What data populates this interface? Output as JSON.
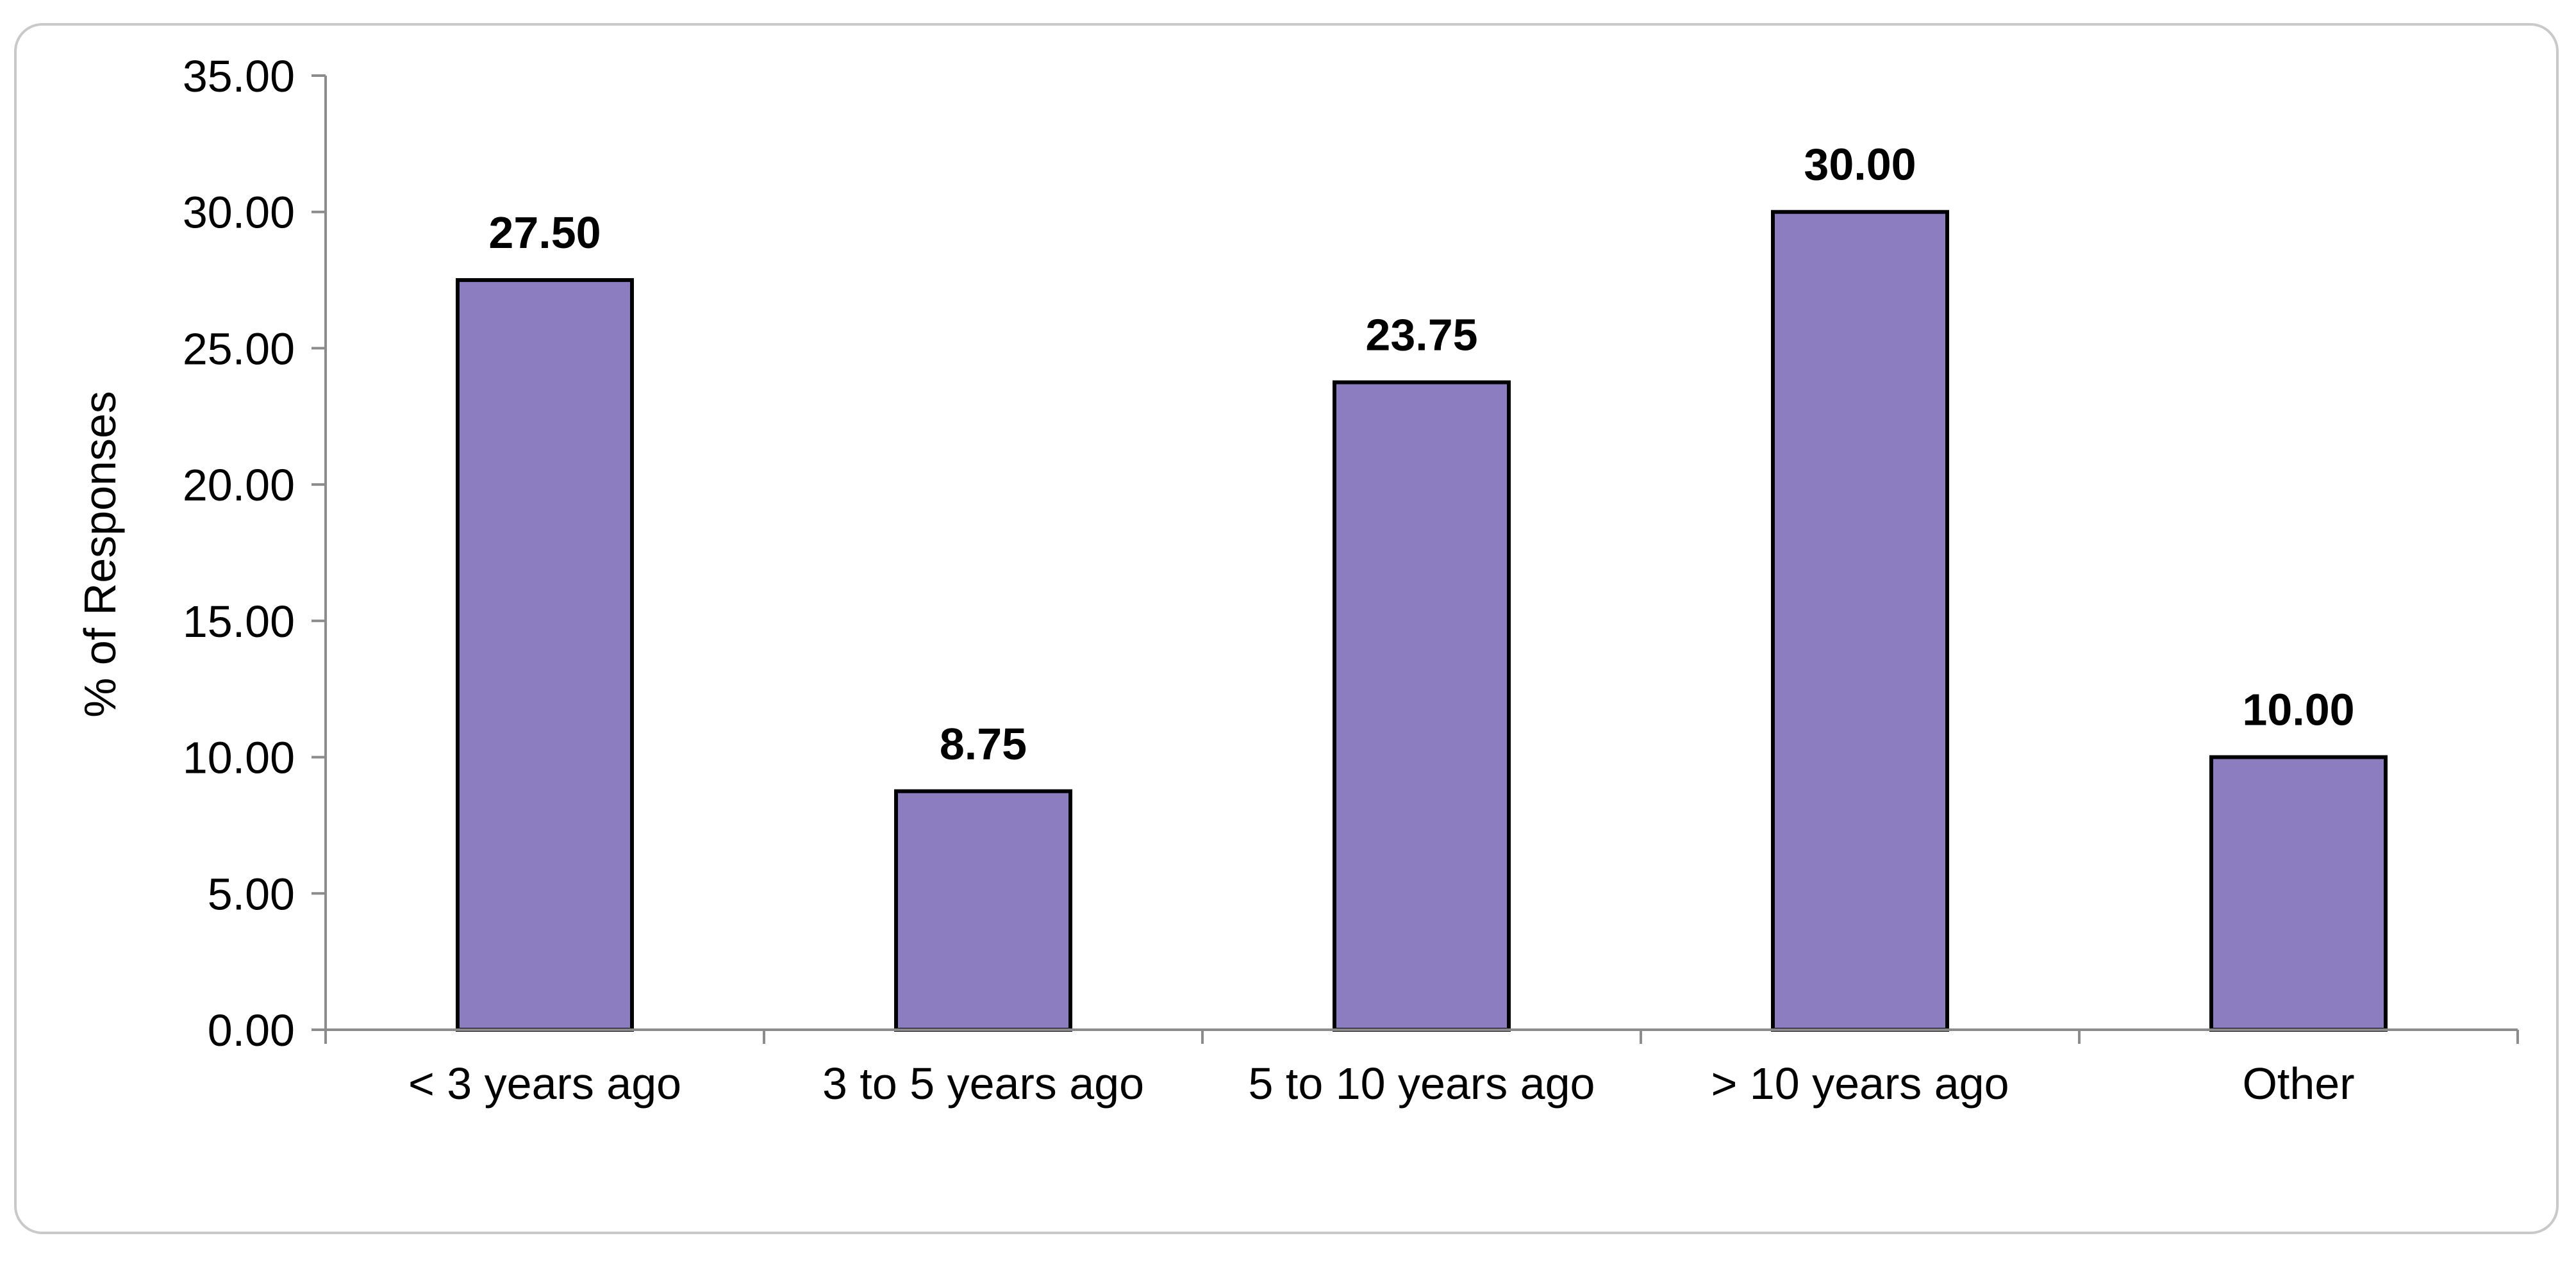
{
  "chart_data": {
    "type": "bar",
    "title": "",
    "xlabel": "",
    "ylabel": "% of Responses",
    "categories": [
      "< 3 years ago",
      "3 to 5 years ago",
      "5 to 10 years ago",
      "> 10 years ago",
      "Other"
    ],
    "values": [
      27.5,
      8.75,
      23.75,
      30.0,
      10.0
    ],
    "data_labels": [
      "27.50",
      "8.75",
      "23.75",
      "30.00",
      "10.00"
    ],
    "y_ticks": [
      "0.00",
      "5.00",
      "10.00",
      "15.00",
      "20.00",
      "25.00",
      "30.00",
      "35.00"
    ],
    "ylim": [
      0,
      35
    ],
    "grid": false,
    "legend": "none",
    "colors": {
      "bar_fill": "#8b7dc0",
      "bar_stroke": "#000000",
      "axis": "#8c8c8c",
      "text": "#000000",
      "frame": "#c9c9c9"
    }
  }
}
